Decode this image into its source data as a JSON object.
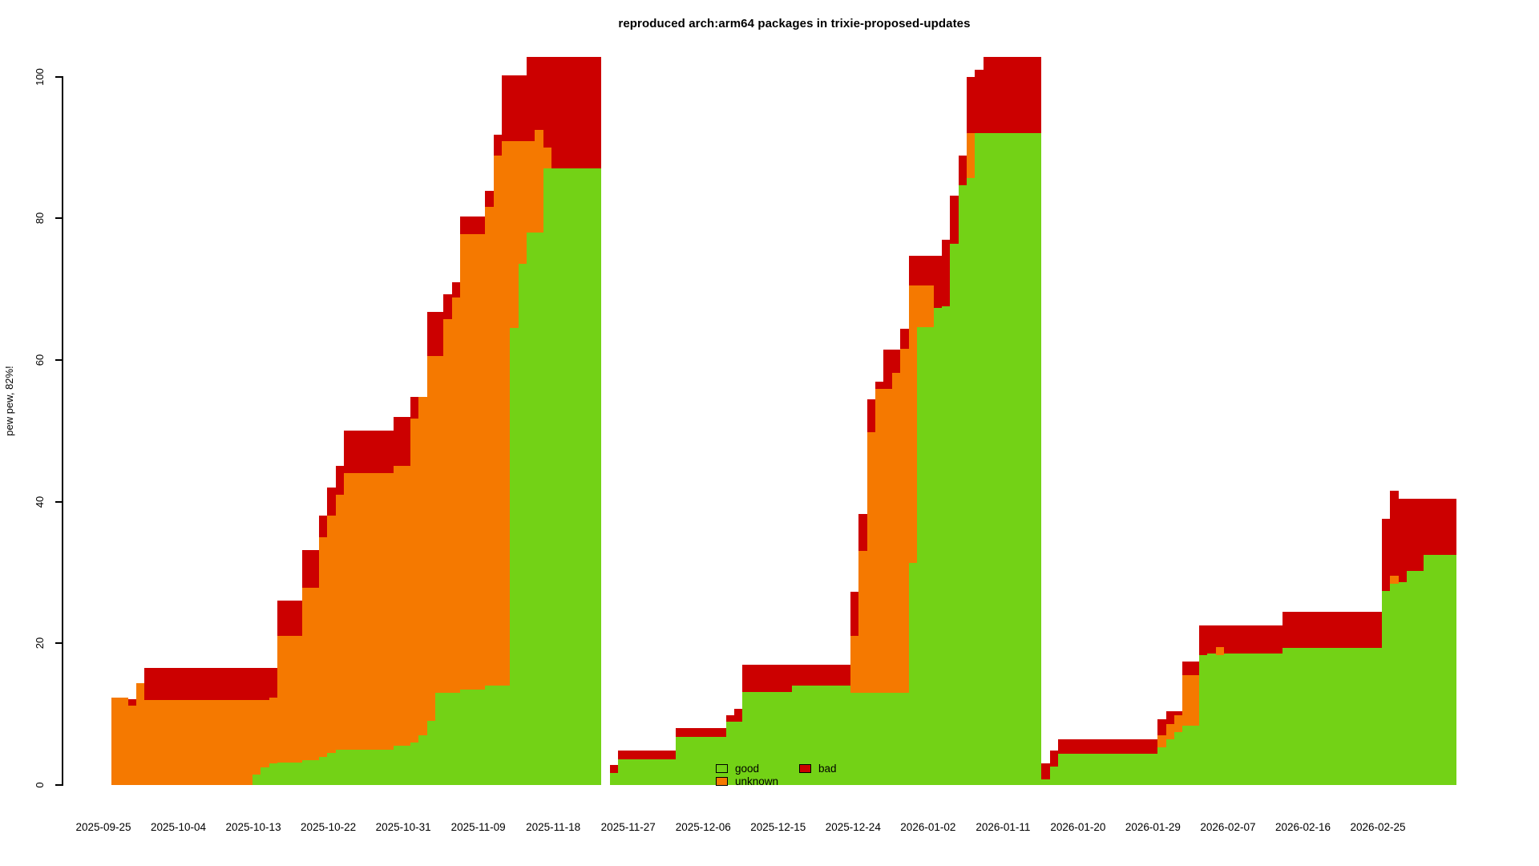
{
  "legend": {
    "items": [
      {
        "label": "good",
        "color": "#73D216"
      },
      {
        "label": "bad",
        "color": "#CC0000"
      },
      {
        "label": "unknown",
        "color": "#F57900"
      }
    ]
  },
  "chart_data": {
    "type": "bar",
    "stacked": true,
    "title": "reproduced arch:arm64 packages in trixie-proposed-updates",
    "ylabel": "pew pew, 82%!",
    "xlabel": "",
    "ylim": [
      0,
      103
    ],
    "grid": false,
    "legend_position": "bottom-center-inside",
    "y_ticks": [
      0,
      20,
      40,
      60,
      80,
      100
    ],
    "x_tick_labels": [
      "2025-09-25",
      "2025-10-04",
      "2025-10-13",
      "2025-10-22",
      "2025-10-31",
      "2025-11-09",
      "2025-11-18",
      "2025-11-27",
      "2025-12-06",
      "2025-12-15",
      "2025-12-24",
      "2026-01-02",
      "2026-01-11",
      "2026-01-20",
      "2026-01-29",
      "2026-02-07",
      "2026-02-16",
      "2026-02-25"
    ],
    "series_order": [
      "good",
      "unknown",
      "bad"
    ],
    "colors": {
      "good": "#73D216",
      "unknown": "#F57900",
      "bad": "#CC0000"
    },
    "note": "one stacked column per day; values are [good, unknown, bad] stack heights in percent; null = no data (gap)",
    "bars_good_unknown_bad": [
      [
        0,
        12.3,
        0
      ],
      [
        0,
        12.3,
        0
      ],
      [
        0,
        11.2,
        0.9
      ],
      [
        0,
        14.4,
        0
      ],
      [
        0,
        12,
        4.5
      ],
      [
        0,
        12,
        4.5
      ],
      [
        0,
        12,
        4.5
      ],
      [
        0,
        12,
        4.5
      ],
      [
        0,
        12,
        4.5
      ],
      [
        0,
        12,
        4.5
      ],
      [
        0,
        12,
        4.5
      ],
      [
        0,
        12,
        4.5
      ],
      [
        0,
        12,
        4.5
      ],
      [
        0,
        12,
        4.5
      ],
      [
        0,
        12,
        4.5
      ],
      [
        0,
        12,
        4.5
      ],
      [
        0,
        12,
        4.5
      ],
      [
        1.5,
        10.5,
        4.5
      ],
      [
        2.5,
        9.5,
        4.5
      ],
      [
        3,
        9.3,
        4.2
      ],
      [
        3.2,
        17.8,
        5
      ],
      [
        3.2,
        17.8,
        5
      ],
      [
        3.2,
        17.8,
        5
      ],
      [
        3.5,
        24.3,
        5.4
      ],
      [
        3.5,
        24.3,
        5.4
      ],
      [
        4,
        31,
        3
      ],
      [
        4.5,
        33.5,
        4
      ],
      [
        5,
        36,
        4
      ],
      [
        5,
        39,
        6
      ],
      [
        5,
        39,
        6
      ],
      [
        5,
        39,
        6
      ],
      [
        5,
        39,
        6
      ],
      [
        5,
        39,
        6
      ],
      [
        5,
        39,
        6
      ],
      [
        5.5,
        39.5,
        7
      ],
      [
        5.5,
        39.5,
        7
      ],
      [
        6,
        45.7,
        3.1
      ],
      [
        7,
        47.8,
        0
      ],
      [
        9,
        51.5,
        6.3
      ],
      [
        13,
        47.5,
        6.3
      ],
      [
        13,
        52.8,
        3.5
      ],
      [
        13,
        55.8,
        2.2
      ],
      [
        13.5,
        64.3,
        2.5
      ],
      [
        13.5,
        64.3,
        2.5
      ],
      [
        13.5,
        64.3,
        2.5
      ],
      [
        14,
        67.6,
        2.3
      ],
      [
        14,
        74.8,
        3
      ],
      [
        14,
        76.9,
        9.3
      ],
      [
        64.5,
        26.4,
        9.3
      ],
      [
        73.6,
        17.3,
        9.3
      ],
      [
        78,
        12.9,
        11.9
      ],
      [
        78,
        14.5,
        10.3
      ],
      [
        87,
        3,
        12.8
      ],
      [
        87,
        0,
        15.8
      ],
      [
        87,
        0,
        15.8
      ],
      [
        87,
        0,
        15.8
      ],
      [
        87,
        0,
        15.8
      ],
      [
        87,
        0,
        15.8
      ],
      [
        87,
        0,
        15.8
      ],
      null,
      [
        1.7,
        0,
        1.1
      ],
      [
        3.6,
        0,
        1.3
      ],
      [
        3.6,
        0,
        1.3
      ],
      [
        3.6,
        0,
        1.3
      ],
      [
        3.6,
        0,
        1.3
      ],
      [
        3.6,
        0,
        1.3
      ],
      [
        3.6,
        0,
        1.3
      ],
      [
        3.6,
        0,
        1.3
      ],
      [
        6.8,
        0,
        1.2
      ],
      [
        6.8,
        0,
        1.2
      ],
      [
        6.8,
        0,
        1.2
      ],
      [
        6.8,
        0,
        1.2
      ],
      [
        6.8,
        0,
        1.2
      ],
      [
        6.8,
        0,
        1.2
      ],
      [
        8.9,
        0,
        1.0
      ],
      [
        8.9,
        0,
        1.9
      ],
      [
        13.1,
        0,
        3.9
      ],
      [
        13.1,
        0,
        3.9
      ],
      [
        13.1,
        0,
        3.9
      ],
      [
        13.1,
        0,
        3.9
      ],
      [
        13.1,
        0,
        3.9
      ],
      [
        13.1,
        0,
        3.9
      ],
      [
        14,
        0,
        3
      ],
      [
        14,
        0,
        3
      ],
      [
        14,
        0,
        3
      ],
      [
        14,
        0,
        3
      ],
      [
        14,
        0,
        3
      ],
      [
        14,
        0,
        3
      ],
      [
        14,
        0,
        3
      ],
      [
        13,
        8,
        6.3
      ],
      [
        13,
        20,
        5.3
      ],
      [
        13,
        36.8,
        4.7
      ],
      [
        13,
        42.9,
        1
      ],
      [
        13,
        42.9,
        5.6
      ],
      [
        13,
        45.2,
        3.3
      ],
      [
        13,
        48.6,
        2.8
      ],
      [
        31.3,
        39.2,
        4.2
      ],
      [
        64.6,
        5.9,
        4.2
      ],
      [
        64.6,
        5.9,
        4.2
      ],
      [
        67.4,
        0,
        7.3
      ],
      [
        67.6,
        0,
        9.4
      ],
      [
        76.4,
        0,
        6.8
      ],
      [
        84.7,
        0,
        4.1
      ],
      [
        85.7,
        6.3,
        8
      ],
      [
        92,
        0,
        9
      ],
      [
        92,
        0,
        10.8
      ],
      [
        92,
        0,
        10.8
      ],
      [
        92,
        0,
        10.8
      ],
      [
        92,
        0,
        10.8
      ],
      [
        92,
        0,
        10.8
      ],
      [
        92,
        0,
        10.8
      ],
      [
        92,
        0,
        10.8
      ],
      [
        0.8,
        0,
        2.3
      ],
      [
        2.6,
        0,
        2.3
      ],
      [
        4.4,
        0,
        2
      ],
      [
        4.4,
        0,
        2
      ],
      [
        4.4,
        0,
        2
      ],
      [
        4.4,
        0,
        2
      ],
      [
        4.4,
        0,
        2
      ],
      [
        4.4,
        0,
        2
      ],
      [
        4.4,
        0,
        2
      ],
      [
        4.4,
        0,
        2
      ],
      [
        4.4,
        0,
        2
      ],
      [
        4.4,
        0,
        2
      ],
      [
        4.4,
        0,
        2
      ],
      [
        4.4,
        0,
        2
      ],
      [
        5.3,
        1.7,
        2.3
      ],
      [
        6.4,
        2.2,
        1.8
      ],
      [
        7.5,
        2.3,
        0.6
      ],
      [
        8.4,
        7.1,
        1.9
      ],
      [
        8.4,
        7.1,
        1.9
      ],
      [
        18.3,
        0,
        4.2
      ],
      [
        18.6,
        0,
        3.9
      ],
      [
        18.3,
        1.2,
        3
      ],
      [
        18.6,
        0,
        3.9
      ],
      [
        18.6,
        0,
        3.9
      ],
      [
        18.6,
        0,
        3.9
      ],
      [
        18.6,
        0,
        3.9
      ],
      [
        18.6,
        0,
        3.9
      ],
      [
        18.6,
        0,
        3.9
      ],
      [
        18.6,
        0,
        3.9
      ],
      [
        19.3,
        0,
        5.1
      ],
      [
        19.3,
        0,
        5.1
      ],
      [
        19.3,
        0,
        5.1
      ],
      [
        19.3,
        0,
        5.1
      ],
      [
        19.3,
        0,
        5.1
      ],
      [
        19.3,
        0,
        5.1
      ],
      [
        19.3,
        0,
        5.1
      ],
      [
        19.3,
        0,
        5.1
      ],
      [
        19.3,
        0,
        5.1
      ],
      [
        19.3,
        0,
        5.1
      ],
      [
        19.3,
        0,
        5.1
      ],
      [
        19.3,
        0,
        5.1
      ],
      [
        27.4,
        0,
        10.2
      ],
      [
        28.4,
        1.1,
        12
      ],
      [
        28.6,
        0,
        11.8
      ],
      [
        30.2,
        0,
        10.2
      ],
      [
        30.2,
        0,
        10.2
      ],
      [
        32.5,
        0,
        7.9
      ],
      [
        32.5,
        0,
        7.9
      ],
      [
        32.5,
        0,
        7.9
      ],
      [
        32.5,
        0,
        7.9
      ]
    ]
  }
}
